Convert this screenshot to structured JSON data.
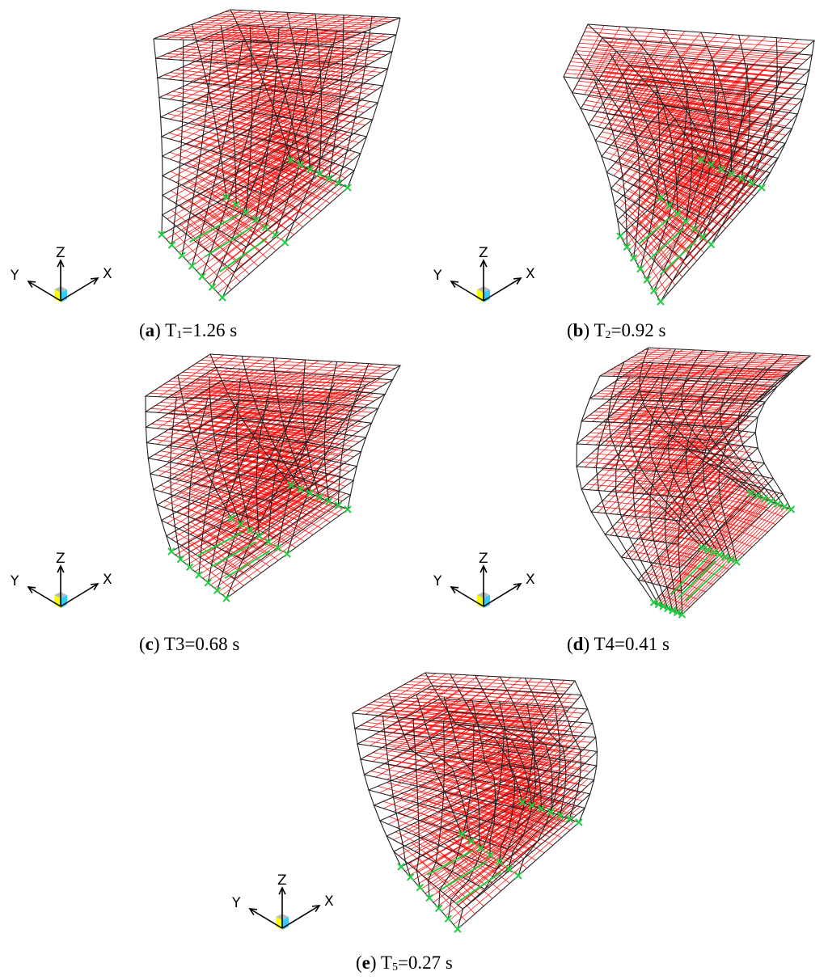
{
  "panels": [
    {
      "id": "a",
      "letter": "a",
      "T_main": "T",
      "T_sub": "1",
      "value": "=1.26 s",
      "mode_shape": "first-translational"
    },
    {
      "id": "b",
      "letter": "b",
      "T_main": "T",
      "T_sub": "2",
      "value": "=0.92 s",
      "mode_shape": "torsional"
    },
    {
      "id": "c",
      "letter": "c",
      "T_main": "T3",
      "T_sub": "",
      "value": "=0.68 s",
      "mode_shape": "second-translational"
    },
    {
      "id": "d",
      "letter": "d",
      "T_main": "T4",
      "T_sub": "",
      "value": "=0.41 s",
      "mode_shape": "higher-order"
    },
    {
      "id": "e",
      "letter": "e",
      "T_main": "T",
      "T_sub": "5",
      "value": "=0.27 s",
      "mode_shape": "higher-order-torsion"
    }
  ],
  "axes": {
    "x": "X",
    "y": "Y",
    "z": "Z"
  },
  "colors": {
    "slab_mesh": "#ff0000",
    "frame": "#222222",
    "support": "#22cc44",
    "cube_yellow": "#ffff00",
    "cube_cyan": "#33ccff",
    "cube_gray": "#bbbbbb"
  }
}
